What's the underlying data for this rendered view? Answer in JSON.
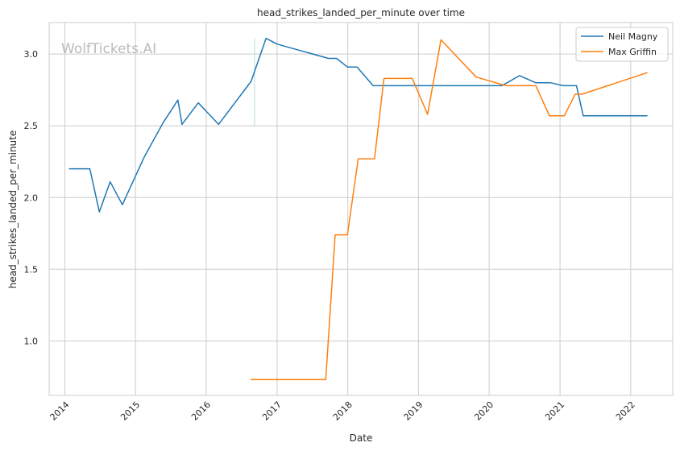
{
  "chart_data": {
    "type": "line",
    "title": "head_strikes_landed_per_minute over time",
    "xlabel": "Date",
    "ylabel": "head_strikes_landed_per_minute",
    "watermark": "WolfTickets.AI",
    "x_ticks": [
      "2014",
      "2015",
      "2016",
      "2017",
      "2018",
      "2019",
      "2020",
      "2021",
      "2022"
    ],
    "y_ticks": [
      "1.0",
      "1.5",
      "2.0",
      "2.5",
      "3.0"
    ],
    "xlim": [
      "2013-10-12",
      "2022-08-06"
    ],
    "ylim": [
      0.62,
      3.22
    ],
    "grid": true,
    "legend_position": "top-right",
    "series": [
      {
        "name": "Neil Magny",
        "color": "#1f77b4",
        "points": [
          [
            "2014-01-25",
            2.2
          ],
          [
            "2014-05-10",
            2.2
          ],
          [
            "2014-06-28",
            1.9
          ],
          [
            "2014-08-23",
            2.11
          ],
          [
            "2014-10-25",
            1.95
          ],
          [
            "2015-02-14",
            2.28
          ],
          [
            "2015-05-23",
            2.52
          ],
          [
            "2015-08-08",
            2.68
          ],
          [
            "2015-08-29",
            2.51
          ],
          [
            "2015-11-21",
            2.66
          ],
          [
            "2016-03-05",
            2.51
          ],
          [
            "2016-08-20",
            2.81
          ],
          [
            "2016-11-05",
            3.11
          ],
          [
            "2016-12-31",
            3.07
          ],
          [
            "2017-09-23",
            2.97
          ],
          [
            "2017-11-04",
            2.97
          ],
          [
            "2017-12-30",
            2.91
          ],
          [
            "2018-02-18",
            2.91
          ],
          [
            "2018-05-12",
            2.78
          ],
          [
            "2018-07-22",
            2.78
          ],
          [
            "2018-12-15",
            2.78
          ],
          [
            "2020-03-07",
            2.78
          ],
          [
            "2020-06-06",
            2.85
          ],
          [
            "2020-08-29",
            2.8
          ],
          [
            "2020-11-14",
            2.8
          ],
          [
            "2021-01-17",
            2.78
          ],
          [
            "2021-03-27",
            2.78
          ],
          [
            "2021-05-01",
            2.57
          ],
          [
            "2022-03-26",
            2.57
          ]
        ]
      },
      {
        "name": "Max Griffin",
        "color": "#ff7f0e",
        "points": [
          [
            "2016-08-20",
            0.73
          ],
          [
            "2017-09-09",
            0.73
          ],
          [
            "2017-10-28",
            1.74
          ],
          [
            "2017-12-30",
            1.74
          ],
          [
            "2018-02-24",
            2.27
          ],
          [
            "2018-05-19",
            2.27
          ],
          [
            "2018-07-07",
            2.83
          ],
          [
            "2018-11-30",
            2.83
          ],
          [
            "2019-02-17",
            2.58
          ],
          [
            "2019-04-27",
            3.1
          ],
          [
            "2019-10-26",
            2.84
          ],
          [
            "2020-03-28",
            2.78
          ],
          [
            "2020-08-29",
            2.78
          ],
          [
            "2020-11-07",
            2.57
          ],
          [
            "2021-01-23",
            2.57
          ],
          [
            "2021-03-20",
            2.72
          ],
          [
            "2021-04-24",
            2.72
          ],
          [
            "2022-03-26",
            2.87
          ]
        ]
      }
    ]
  }
}
